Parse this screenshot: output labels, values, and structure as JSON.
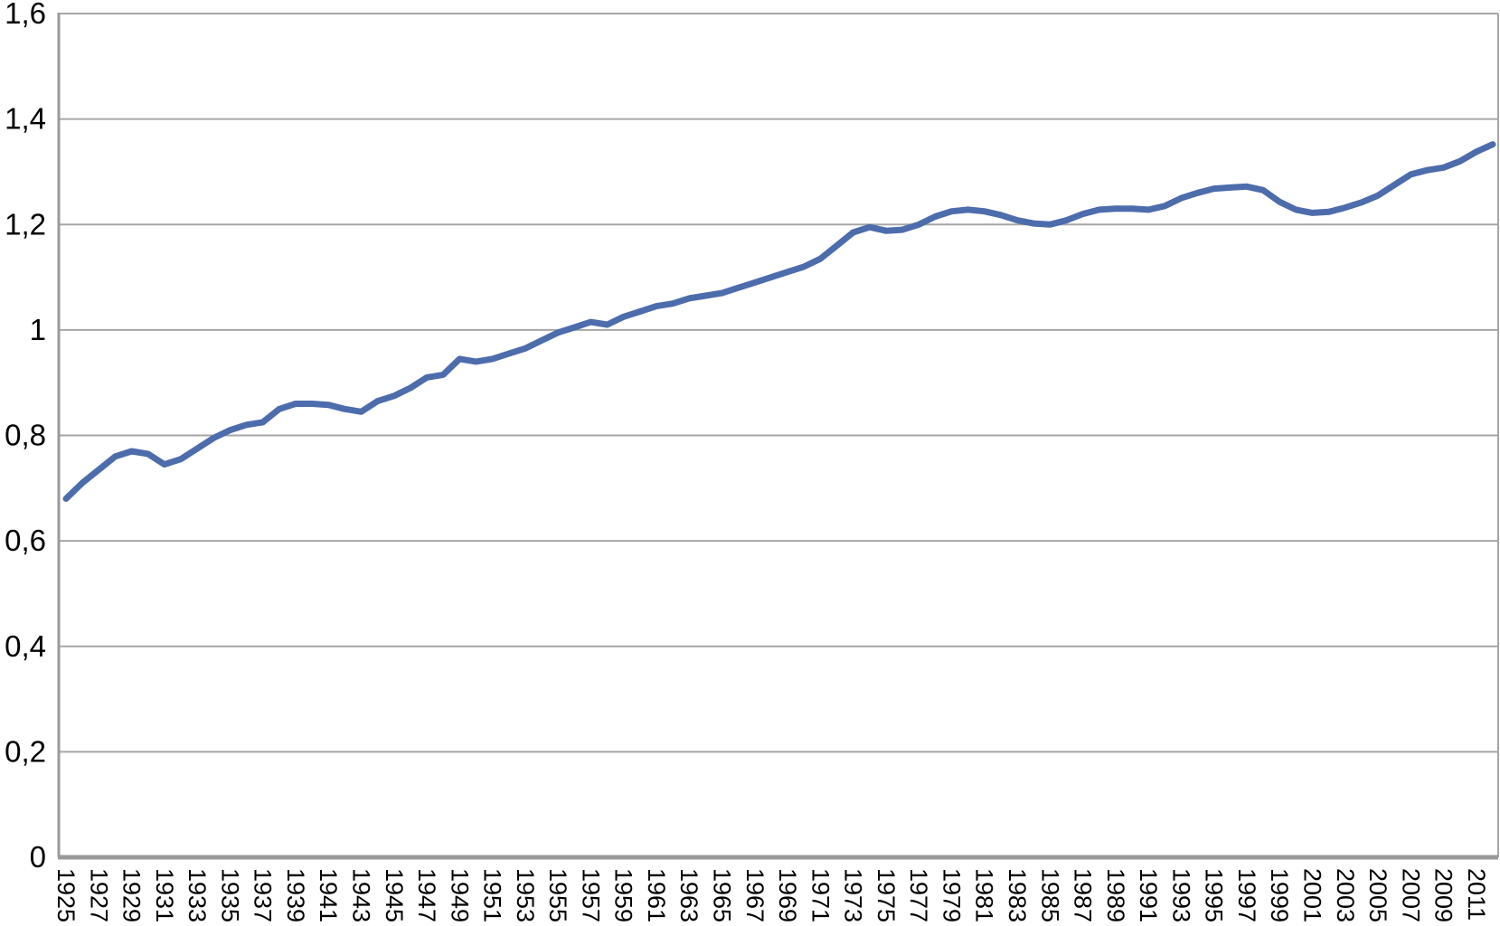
{
  "chart_data": {
    "type": "line",
    "title": "",
    "xlabel": "",
    "ylabel": "",
    "legend": "none",
    "grid": "horizontal",
    "decimal_separator": ",",
    "x_start": 1925,
    "x_end": 2012,
    "x": [
      1925,
      1926,
      1927,
      1928,
      1929,
      1930,
      1931,
      1932,
      1933,
      1934,
      1935,
      1936,
      1937,
      1938,
      1939,
      1940,
      1941,
      1942,
      1943,
      1944,
      1945,
      1946,
      1947,
      1948,
      1949,
      1950,
      1951,
      1952,
      1953,
      1954,
      1955,
      1956,
      1957,
      1958,
      1959,
      1960,
      1961,
      1962,
      1963,
      1964,
      1965,
      1966,
      1967,
      1968,
      1969,
      1970,
      1971,
      1972,
      1973,
      1974,
      1975,
      1976,
      1977,
      1978,
      1979,
      1980,
      1981,
      1982,
      1983,
      1984,
      1985,
      1986,
      1987,
      1988,
      1989,
      1990,
      1991,
      1992,
      1993,
      1994,
      1995,
      1996,
      1997,
      1998,
      1999,
      2000,
      2001,
      2002,
      2003,
      2004,
      2005,
      2006,
      2007,
      2008,
      2009,
      2010,
      2011,
      2012
    ],
    "values": [
      0.68,
      0.71,
      0.735,
      0.76,
      0.77,
      0.765,
      0.745,
      0.755,
      0.775,
      0.795,
      0.81,
      0.82,
      0.825,
      0.85,
      0.86,
      0.86,
      0.858,
      0.85,
      0.845,
      0.865,
      0.875,
      0.89,
      0.91,
      0.915,
      0.945,
      0.94,
      0.945,
      0.955,
      0.965,
      0.98,
      0.995,
      1.005,
      1.015,
      1.01,
      1.025,
      1.035,
      1.045,
      1.05,
      1.06,
      1.065,
      1.07,
      1.08,
      1.09,
      1.1,
      1.11,
      1.12,
      1.135,
      1.16,
      1.185,
      1.195,
      1.188,
      1.19,
      1.2,
      1.215,
      1.225,
      1.228,
      1.225,
      1.218,
      1.208,
      1.202,
      1.2,
      1.208,
      1.22,
      1.228,
      1.23,
      1.23,
      1.228,
      1.235,
      1.25,
      1.26,
      1.268,
      1.27,
      1.272,
      1.265,
      1.243,
      1.228,
      1.222,
      1.224,
      1.232,
      1.242,
      1.255,
      1.275,
      1.295,
      1.303,
      1.308,
      1.32,
      1.338,
      1.352
    ],
    "x_tick_labels": [
      "1925",
      "1927",
      "1929",
      "1931",
      "1933",
      "1935",
      "1937",
      "1939",
      "1941",
      "1943",
      "1945",
      "1947",
      "1949",
      "1951",
      "1953",
      "1955",
      "1957",
      "1959",
      "1961",
      "1963",
      "1965",
      "1967",
      "1969",
      "1971",
      "1973",
      "1975",
      "1977",
      "1979",
      "1981",
      "1983",
      "1985",
      "1987",
      "1989",
      "1991",
      "1993",
      "1995",
      "1997",
      "1999",
      "2001",
      "2003",
      "2005",
      "2007",
      "2009",
      "2011"
    ],
    "y_ticks": [
      0,
      0.2,
      0.4,
      0.6,
      0.8,
      1.0,
      1.2,
      1.4,
      1.6
    ],
    "y_tick_labels": [
      "0",
      "0,2",
      "0,4",
      "0,6",
      "0,8",
      "1",
      "1,2",
      "1,4",
      "1,6"
    ],
    "ylim": [
      0,
      1.6
    ],
    "colors": {
      "line": "#4d6cac",
      "gridline": "#a6a6a6",
      "axis": "#9a9a9a",
      "text": "#000000",
      "background": "#ffffff"
    }
  }
}
